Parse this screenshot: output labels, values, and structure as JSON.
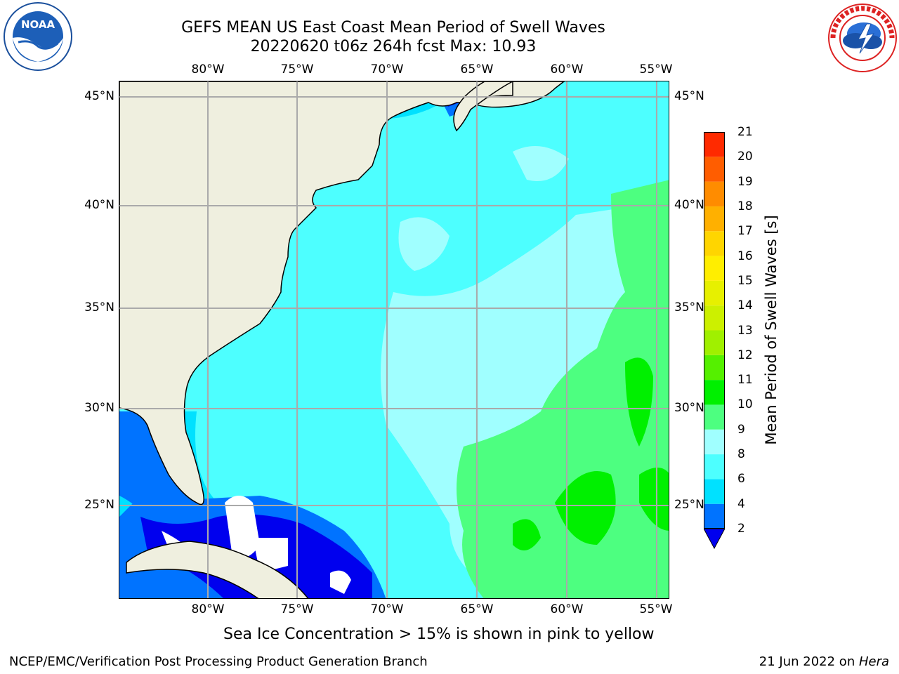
{
  "header": {
    "title_line1": "GEFS MEAN US East Coast Mean Period of Swell Waves",
    "title_line2": "20220620 t06z 264h fcst   Max: 10.93"
  },
  "logos": {
    "left": {
      "name": "noaa-logo",
      "text": "NOAA",
      "ring_text": "NATIONAL OCEANIC AND ATMOSPHERIC ADMINISTRATION · U.S. DEPARTMENT OF COMMERCE"
    },
    "right": {
      "name": "nws-logo",
      "ring_text": "NATIONAL WEATHER SERVICE"
    }
  },
  "map": {
    "lon_labels": [
      "80°W",
      "75°W",
      "70°W",
      "65°W",
      "60°W",
      "55°W"
    ],
    "lat_labels": [
      "45°N",
      "40°N",
      "35°N",
      "30°N",
      "25°N"
    ],
    "land_color": "#efefdf",
    "sea_ice_color": "#ffffff"
  },
  "colorbar": {
    "title": "Mean Period of Swell Waves [s]",
    "ticks": [
      "2",
      "4",
      "6",
      "8",
      "9",
      "10",
      "11",
      "12",
      "13",
      "14",
      "15",
      "16",
      "17",
      "18",
      "19",
      "20",
      "21"
    ],
    "colors": [
      "#0073ff",
      "#00e1ff",
      "#4dffff",
      "#a0ffff",
      "#4dff80",
      "#00f000",
      "#55f000",
      "#a0f000",
      "#ccf000",
      "#e7f000",
      "#ffee00",
      "#ffd500",
      "#ffb000",
      "#ff8c00",
      "#ff5d00",
      "#ff2a00",
      "#ff0000"
    ],
    "extend_color": "#0000ee"
  },
  "note": "Sea Ice Concentration > 15% is shown in pink to yellow",
  "footer": {
    "left": "NCEP/EMC/Verification Post Processing Product Generation Branch",
    "right_prefix": "21 Jun 2022 on ",
    "right_machine": "Hera"
  }
}
